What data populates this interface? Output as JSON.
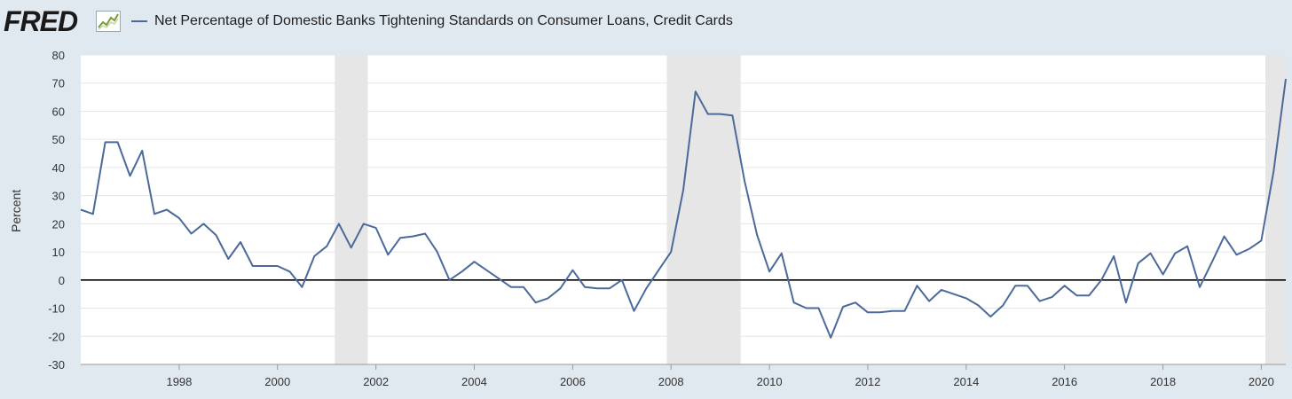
{
  "header": {
    "logo_text": "FRED",
    "legend_label": "Net Percentage of Domestic Banks Tightening Standards on Consumer Loans, Credit Cards"
  },
  "colors": {
    "background": "#e1e9f0",
    "plot_background": "#ffffff",
    "series": "#4b6a9b",
    "recession": "#e6e6e6",
    "zero_line": "#000000",
    "grid": "#e6e6e6"
  },
  "chart_data": {
    "type": "line",
    "ylabel": "Percent",
    "xlim": [
      "1996-01-01",
      "2020-07-01"
    ],
    "ylim": [
      -30,
      80
    ],
    "y_ticks": [
      80,
      70,
      60,
      50,
      40,
      30,
      20,
      10,
      0,
      -10,
      -20,
      -30
    ],
    "x_ticks": [
      "1998",
      "2000",
      "2002",
      "2004",
      "2006",
      "2008",
      "2010",
      "2012",
      "2014",
      "2016",
      "2018",
      "2020"
    ],
    "grid": "horizontal",
    "recessions": [
      [
        "2001-03-01",
        "2001-11-01"
      ],
      [
        "2007-12-01",
        "2009-06-01"
      ],
      [
        "2020-02-01",
        "2020-07-01"
      ]
    ],
    "series": [
      {
        "name": "Net Percentage of Domestic Banks Tightening Standards on Consumer Loans, Credit Cards",
        "points": [
          [
            "1996-01-01",
            25
          ],
          [
            "1996-04-01",
            23.5
          ],
          [
            "1996-07-01",
            49
          ],
          [
            "1996-10-01",
            49
          ],
          [
            "1997-01-01",
            37
          ],
          [
            "1997-04-01",
            46
          ],
          [
            "1997-07-01",
            23.5
          ],
          [
            "1997-10-01",
            25
          ],
          [
            "1998-01-01",
            22
          ],
          [
            "1998-04-01",
            16.5
          ],
          [
            "1998-07-01",
            20
          ],
          [
            "1998-10-01",
            16
          ],
          [
            "1999-01-01",
            7.5
          ],
          [
            "1999-04-01",
            13.5
          ],
          [
            "1999-07-01",
            5
          ],
          [
            "1999-10-01",
            5
          ],
          [
            "2000-01-01",
            5
          ],
          [
            "2000-04-01",
            3
          ],
          [
            "2000-07-01",
            -2.5
          ],
          [
            "2000-10-01",
            8.5
          ],
          [
            "2001-01-01",
            12
          ],
          [
            "2001-04-01",
            20
          ],
          [
            "2001-07-01",
            11.5
          ],
          [
            "2001-10-01",
            20
          ],
          [
            "2002-01-01",
            18.5
          ],
          [
            "2002-04-01",
            9
          ],
          [
            "2002-07-01",
            15
          ],
          [
            "2002-10-01",
            15.5
          ],
          [
            "2003-01-01",
            16.5
          ],
          [
            "2003-04-01",
            10
          ],
          [
            "2003-07-01",
            0
          ],
          [
            "2003-10-01",
            3
          ],
          [
            "2004-01-01",
            6.5
          ],
          [
            "2004-04-01",
            3.5
          ],
          [
            "2004-07-01",
            0.5
          ],
          [
            "2004-10-01",
            -2.5
          ],
          [
            "2005-01-01",
            -2.5
          ],
          [
            "2005-04-01",
            -8
          ],
          [
            "2005-07-01",
            -6.5
          ],
          [
            "2005-10-01",
            -3
          ],
          [
            "2006-01-01",
            3.5
          ],
          [
            "2006-04-01",
            -2.5
          ],
          [
            "2006-07-01",
            -3
          ],
          [
            "2006-10-01",
            -3
          ],
          [
            "2007-01-01",
            0
          ],
          [
            "2007-04-01",
            -11
          ],
          [
            "2007-07-01",
            -3
          ],
          [
            "2007-10-01",
            3.5
          ],
          [
            "2008-01-01",
            10
          ],
          [
            "2008-04-01",
            32
          ],
          [
            "2008-07-01",
            67
          ],
          [
            "2008-10-01",
            59
          ],
          [
            "2009-01-01",
            59
          ],
          [
            "2009-04-01",
            58.5
          ],
          [
            "2009-07-01",
            35
          ],
          [
            "2009-10-01",
            16
          ],
          [
            "2010-01-01",
            3
          ],
          [
            "2010-04-01",
            9.5
          ],
          [
            "2010-07-01",
            -8
          ],
          [
            "2010-10-01",
            -10
          ],
          [
            "2011-01-01",
            -10
          ],
          [
            "2011-04-01",
            -20.5
          ],
          [
            "2011-07-01",
            -9.5
          ],
          [
            "2011-10-01",
            -8
          ],
          [
            "2012-01-01",
            -11.5
          ],
          [
            "2012-04-01",
            -11.5
          ],
          [
            "2012-07-01",
            -11
          ],
          [
            "2012-10-01",
            -11
          ],
          [
            "2013-01-01",
            -2
          ],
          [
            "2013-04-01",
            -7.5
          ],
          [
            "2013-07-01",
            -3.5
          ],
          [
            "2013-10-01",
            -5
          ],
          [
            "2014-01-01",
            -6.5
          ],
          [
            "2014-04-01",
            -9
          ],
          [
            "2014-07-01",
            -13
          ],
          [
            "2014-10-01",
            -9
          ],
          [
            "2015-01-01",
            -2
          ],
          [
            "2015-04-01",
            -2
          ],
          [
            "2015-07-01",
            -7.5
          ],
          [
            "2015-10-01",
            -6
          ],
          [
            "2016-01-01",
            -2
          ],
          [
            "2016-04-01",
            -5.5
          ],
          [
            "2016-07-01",
            -5.5
          ],
          [
            "2016-10-01",
            0
          ],
          [
            "2017-01-01",
            8.5
          ],
          [
            "2017-04-01",
            -8
          ],
          [
            "2017-07-01",
            6
          ],
          [
            "2017-10-01",
            9.5
          ],
          [
            "2018-01-01",
            2
          ],
          [
            "2018-04-01",
            9.5
          ],
          [
            "2018-07-01",
            12
          ],
          [
            "2018-10-01",
            -2.5
          ],
          [
            "2019-01-01",
            6.5
          ],
          [
            "2019-04-01",
            15.5
          ],
          [
            "2019-07-01",
            9
          ],
          [
            "2019-10-01",
            11
          ],
          [
            "2020-01-01",
            14
          ],
          [
            "2020-04-01",
            38.5
          ],
          [
            "2020-07-01",
            71.5
          ]
        ]
      }
    ]
  }
}
